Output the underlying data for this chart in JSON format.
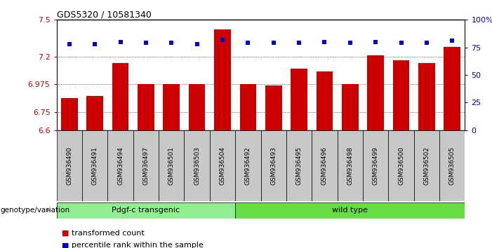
{
  "title": "GDS5320 / 10581340",
  "samples": [
    "GSM936490",
    "GSM936491",
    "GSM936494",
    "GSM936497",
    "GSM936501",
    "GSM936503",
    "GSM936504",
    "GSM936492",
    "GSM936493",
    "GSM936495",
    "GSM936496",
    "GSM936498",
    "GSM936499",
    "GSM936500",
    "GSM936502",
    "GSM936505"
  ],
  "bar_values": [
    6.86,
    6.88,
    7.15,
    6.975,
    6.975,
    6.975,
    7.42,
    6.975,
    6.965,
    7.1,
    7.08,
    6.975,
    7.21,
    7.17,
    7.15,
    7.28
  ],
  "dot_values": [
    78,
    78,
    80,
    79,
    79,
    78,
    82,
    79,
    79,
    79,
    80,
    79,
    80,
    79,
    79,
    81
  ],
  "groups": [
    {
      "label": "Pdgf-c transgenic",
      "start": 0,
      "end": 7,
      "color": "#90EE90"
    },
    {
      "label": "wild type",
      "start": 7,
      "end": 16,
      "color": "#66DD44"
    }
  ],
  "bar_color": "#CC0000",
  "dot_color": "#0000CC",
  "ylim_left": [
    6.6,
    7.5
  ],
  "ylim_right": [
    0,
    100
  ],
  "yticks_left": [
    6.6,
    6.75,
    6.975,
    7.2,
    7.5
  ],
  "yticks_right": [
    0,
    25,
    50,
    75,
    100
  ],
  "ytick_labels_right": [
    "0",
    "25",
    "50",
    "75",
    "100%"
  ],
  "grid_values": [
    6.75,
    6.975,
    7.2
  ],
  "bar_width": 0.65,
  "background_color": "#ffffff",
  "plot_bg_color": "#ffffff",
  "legend_items": [
    {
      "label": "transformed count",
      "color": "#CC0000"
    },
    {
      "label": "percentile rank within the sample",
      "color": "#0000CC"
    }
  ],
  "genotype_label": "genotype/variation",
  "xtick_bg": "#C8C8C8"
}
